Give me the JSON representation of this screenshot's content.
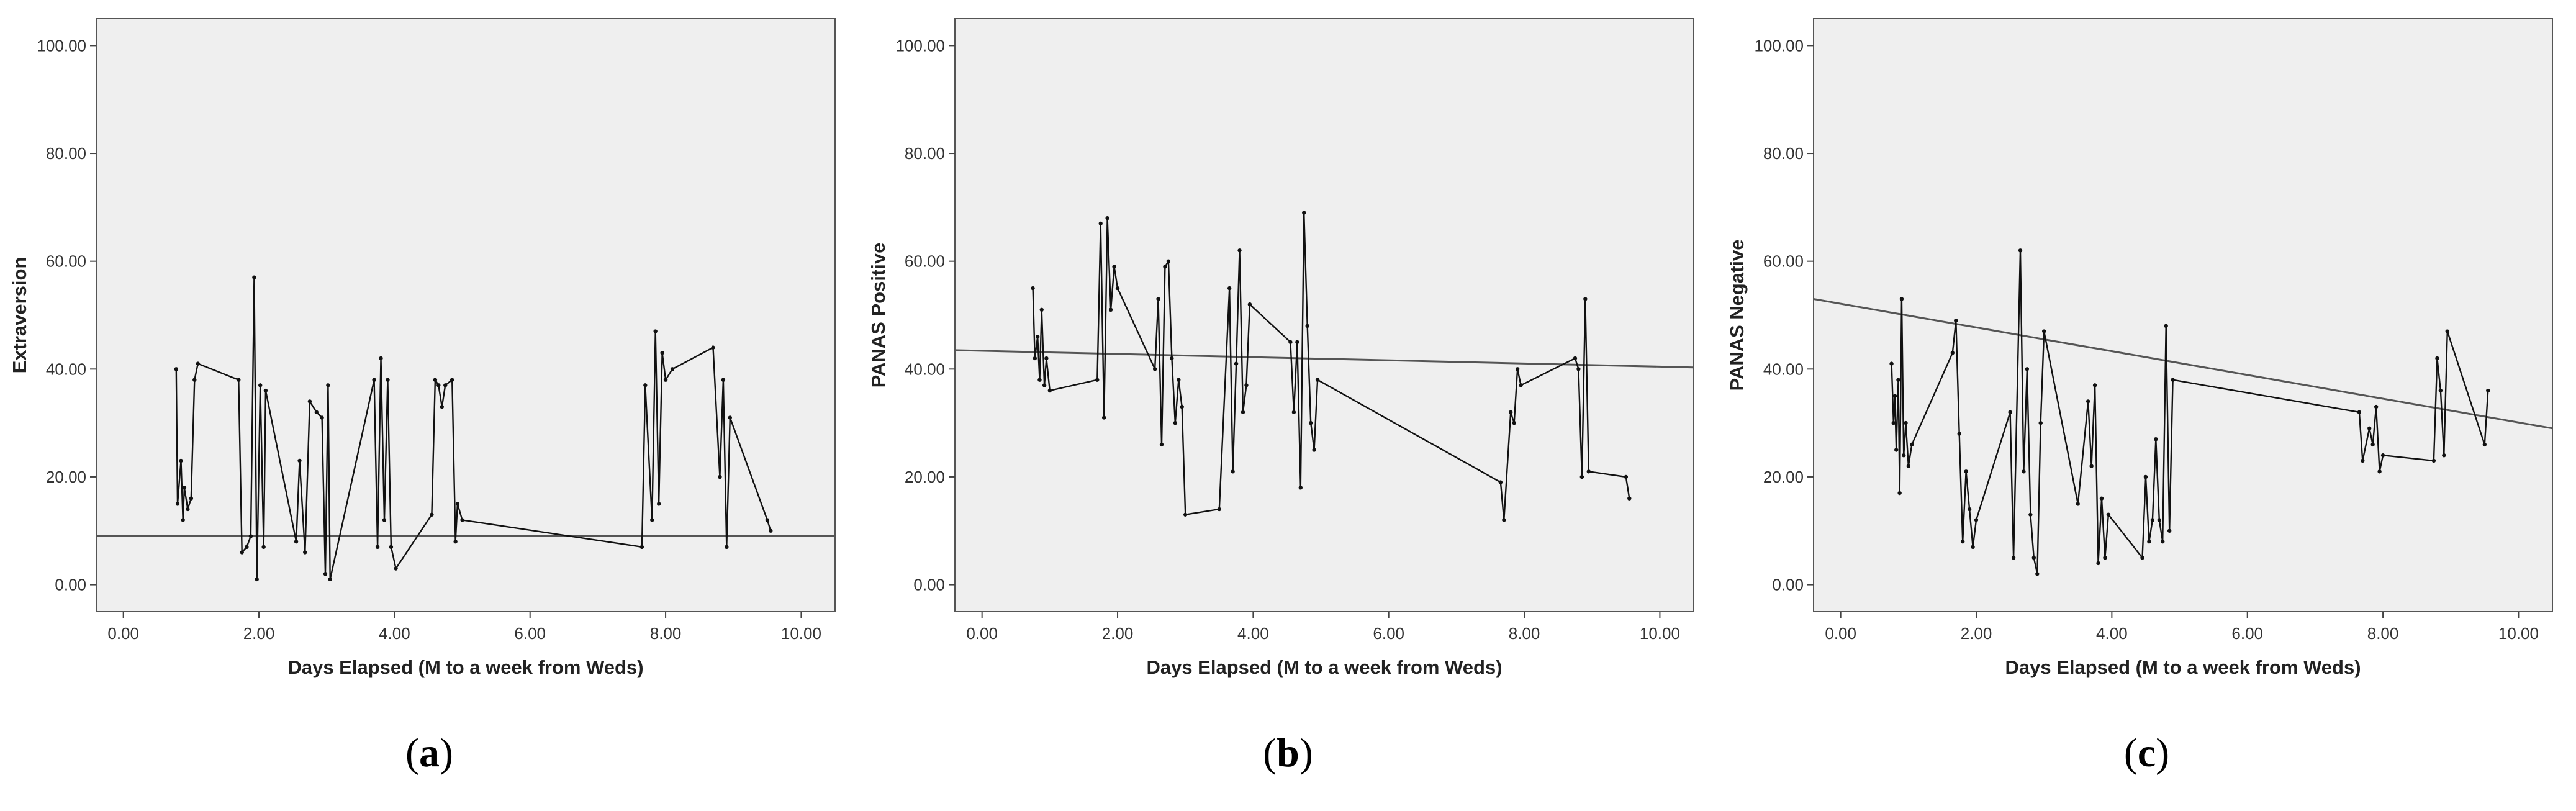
{
  "chart_data": [
    {
      "type": "line",
      "panel_label": "a",
      "xlabel": "Days Elapsed (M to a week from Weds)",
      "ylabel": "Extraversion",
      "xlim": [
        -0.4,
        10.5
      ],
      "ylim": [
        -5,
        105
      ],
      "x_ticks": [
        "0.00",
        "2.00",
        "4.00",
        "6.00",
        "8.00",
        "10.00"
      ],
      "y_ticks": [
        "0.00",
        "20.00",
        "40.00",
        "60.00",
        "80.00",
        "100.00"
      ],
      "grid": false,
      "background": "#efefef",
      "series": [
        {
          "points": [
            [
              0.78,
              40
            ],
            [
              0.8,
              15
            ],
            [
              0.85,
              23
            ],
            [
              0.88,
              12
            ],
            [
              0.9,
              18
            ],
            [
              0.95,
              14
            ],
            [
              1.0,
              16
            ],
            [
              1.05,
              38
            ],
            [
              1.1,
              41
            ],
            [
              1.7,
              38
            ],
            [
              1.75,
              6
            ],
            [
              1.82,
              7
            ],
            [
              1.88,
              9
            ],
            [
              1.93,
              57
            ],
            [
              1.97,
              1
            ],
            [
              2.02,
              37
            ],
            [
              2.07,
              7
            ],
            [
              2.1,
              36
            ],
            [
              2.55,
              8
            ],
            [
              2.6,
              23
            ],
            [
              2.68,
              6
            ],
            [
              2.75,
              34
            ],
            [
              2.85,
              32
            ],
            [
              2.93,
              31
            ],
            [
              2.98,
              2
            ],
            [
              3.02,
              37
            ],
            [
              3.05,
              1
            ],
            [
              3.7,
              38
            ],
            [
              3.75,
              7
            ],
            [
              3.8,
              42
            ],
            [
              3.85,
              12
            ],
            [
              3.9,
              38
            ],
            [
              3.95,
              7
            ],
            [
              4.02,
              3
            ],
            [
              4.55,
              13
            ],
            [
              4.6,
              38
            ],
            [
              4.65,
              37
            ],
            [
              4.7,
              33
            ],
            [
              4.75,
              37
            ],
            [
              4.85,
              38
            ],
            [
              4.9,
              8
            ],
            [
              4.93,
              15
            ],
            [
              5.0,
              12
            ],
            [
              7.65,
              7
            ],
            [
              7.7,
              37
            ],
            [
              7.8,
              12
            ],
            [
              7.85,
              47
            ],
            [
              7.9,
              15
            ],
            [
              7.95,
              43
            ],
            [
              8.0,
              38
            ],
            [
              8.1,
              40
            ],
            [
              8.7,
              44
            ],
            [
              8.8,
              20
            ],
            [
              8.85,
              38
            ],
            [
              8.9,
              7
            ],
            [
              8.95,
              31
            ],
            [
              9.5,
              12
            ],
            [
              9.55,
              10
            ]
          ]
        }
      ],
      "fit_line": {
        "x": [
          -0.4,
          10.5
        ],
        "y": [
          9,
          9
        ]
      }
    },
    {
      "type": "line",
      "panel_label": "b",
      "xlabel": "Days Elapsed (M to a week from Weds)",
      "ylabel": "PANAS Positive",
      "xlim": [
        -0.4,
        10.5
      ],
      "ylim": [
        -5,
        105
      ],
      "x_ticks": [
        "0.00",
        "2.00",
        "4.00",
        "6.00",
        "8.00",
        "10.00"
      ],
      "y_ticks": [
        "0.00",
        "20.00",
        "40.00",
        "60.00",
        "80.00",
        "100.00"
      ],
      "grid": false,
      "background": "#efefef",
      "series": [
        {
          "points": [
            [
              0.75,
              55
            ],
            [
              0.78,
              42
            ],
            [
              0.82,
              46
            ],
            [
              0.85,
              38
            ],
            [
              0.88,
              51
            ],
            [
              0.92,
              37
            ],
            [
              0.95,
              42
            ],
            [
              1.0,
              36
            ],
            [
              1.7,
              38
            ],
            [
              1.75,
              67
            ],
            [
              1.8,
              31
            ],
            [
              1.85,
              68
            ],
            [
              1.9,
              51
            ],
            [
              1.95,
              59
            ],
            [
              2.0,
              55
            ],
            [
              2.55,
              40
            ],
            [
              2.6,
              53
            ],
            [
              2.65,
              26
            ],
            [
              2.7,
              59
            ],
            [
              2.75,
              60
            ],
            [
              2.8,
              42
            ],
            [
              2.85,
              30
            ],
            [
              2.9,
              38
            ],
            [
              2.95,
              33
            ],
            [
              3.0,
              13
            ],
            [
              3.5,
              14
            ],
            [
              3.65,
              55
            ],
            [
              3.7,
              21
            ],
            [
              3.75,
              41
            ],
            [
              3.8,
              62
            ],
            [
              3.85,
              32
            ],
            [
              3.9,
              37
            ],
            [
              3.95,
              52
            ],
            [
              4.55,
              45
            ],
            [
              4.6,
              32
            ],
            [
              4.65,
              45
            ],
            [
              4.7,
              18
            ],
            [
              4.75,
              69
            ],
            [
              4.8,
              48
            ],
            [
              4.85,
              30
            ],
            [
              4.9,
              25
            ],
            [
              4.95,
              38
            ],
            [
              7.65,
              19
            ],
            [
              7.7,
              12
            ],
            [
              7.8,
              32
            ],
            [
              7.85,
              30
            ],
            [
              7.9,
              40
            ],
            [
              7.95,
              37
            ],
            [
              8.75,
              42
            ],
            [
              8.8,
              40
            ],
            [
              8.85,
              20
            ],
            [
              8.9,
              53
            ],
            [
              8.95,
              21
            ],
            [
              9.5,
              20
            ],
            [
              9.55,
              16
            ]
          ]
        }
      ],
      "fit_line": {
        "x": [
          -0.4,
          10.5
        ],
        "y": [
          43.5,
          40.3
        ]
      }
    },
    {
      "type": "line",
      "panel_label": "c",
      "xlabel": "Days Elapsed (M to a week from Weds)",
      "ylabel": "PANAS Negative",
      "xlim": [
        -0.4,
        10.5
      ],
      "ylim": [
        -5,
        105
      ],
      "x_ticks": [
        "0.00",
        "2.00",
        "4.00",
        "6.00",
        "8.00",
        "10.00"
      ],
      "y_ticks": [
        "0.00",
        "20.00",
        "40.00",
        "60.00",
        "80.00",
        "100.00"
      ],
      "grid": false,
      "background": "#efefef",
      "series": [
        {
          "points": [
            [
              0.75,
              41
            ],
            [
              0.78,
              30
            ],
            [
              0.8,
              35
            ],
            [
              0.82,
              25
            ],
            [
              0.85,
              38
            ],
            [
              0.87,
              17
            ],
            [
              0.9,
              53
            ],
            [
              0.93,
              24
            ],
            [
              0.96,
              30
            ],
            [
              1.0,
              22
            ],
            [
              1.05,
              26
            ],
            [
              1.65,
              43
            ],
            [
              1.7,
              49
            ],
            [
              1.75,
              28
            ],
            [
              1.8,
              8
            ],
            [
              1.85,
              21
            ],
            [
              1.9,
              14
            ],
            [
              1.95,
              7
            ],
            [
              2.0,
              12
            ],
            [
              2.5,
              32
            ],
            [
              2.55,
              5
            ],
            [
              2.65,
              62
            ],
            [
              2.7,
              21
            ],
            [
              2.75,
              40
            ],
            [
              2.8,
              13
            ],
            [
              2.85,
              5
            ],
            [
              2.9,
              2
            ],
            [
              2.95,
              30
            ],
            [
              3.0,
              47
            ],
            [
              3.5,
              15
            ],
            [
              3.65,
              34
            ],
            [
              3.7,
              22
            ],
            [
              3.75,
              37
            ],
            [
              3.8,
              4
            ],
            [
              3.85,
              16
            ],
            [
              3.9,
              5
            ],
            [
              3.95,
              13
            ],
            [
              4.45,
              5
            ],
            [
              4.5,
              20
            ],
            [
              4.55,
              8
            ],
            [
              4.6,
              12
            ],
            [
              4.65,
              27
            ],
            [
              4.7,
              12
            ],
            [
              4.75,
              8
            ],
            [
              4.8,
              48
            ],
            [
              4.85,
              10
            ],
            [
              4.9,
              38
            ],
            [
              7.65,
              32
            ],
            [
              7.7,
              23
            ],
            [
              7.8,
              29
            ],
            [
              7.85,
              26
            ],
            [
              7.9,
              33
            ],
            [
              7.95,
              21
            ],
            [
              8.0,
              24
            ],
            [
              8.75,
              23
            ],
            [
              8.8,
              42
            ],
            [
              8.85,
              36
            ],
            [
              8.9,
              24
            ],
            [
              8.95,
              47
            ],
            [
              9.5,
              26
            ],
            [
              9.55,
              36
            ]
          ]
        }
      ],
      "fit_line": {
        "x": [
          -0.4,
          10.5
        ],
        "y": [
          53,
          29
        ]
      }
    }
  ],
  "colors": {
    "plot_background": "#efefef",
    "line": "#111111",
    "fit_line": "#555555"
  }
}
